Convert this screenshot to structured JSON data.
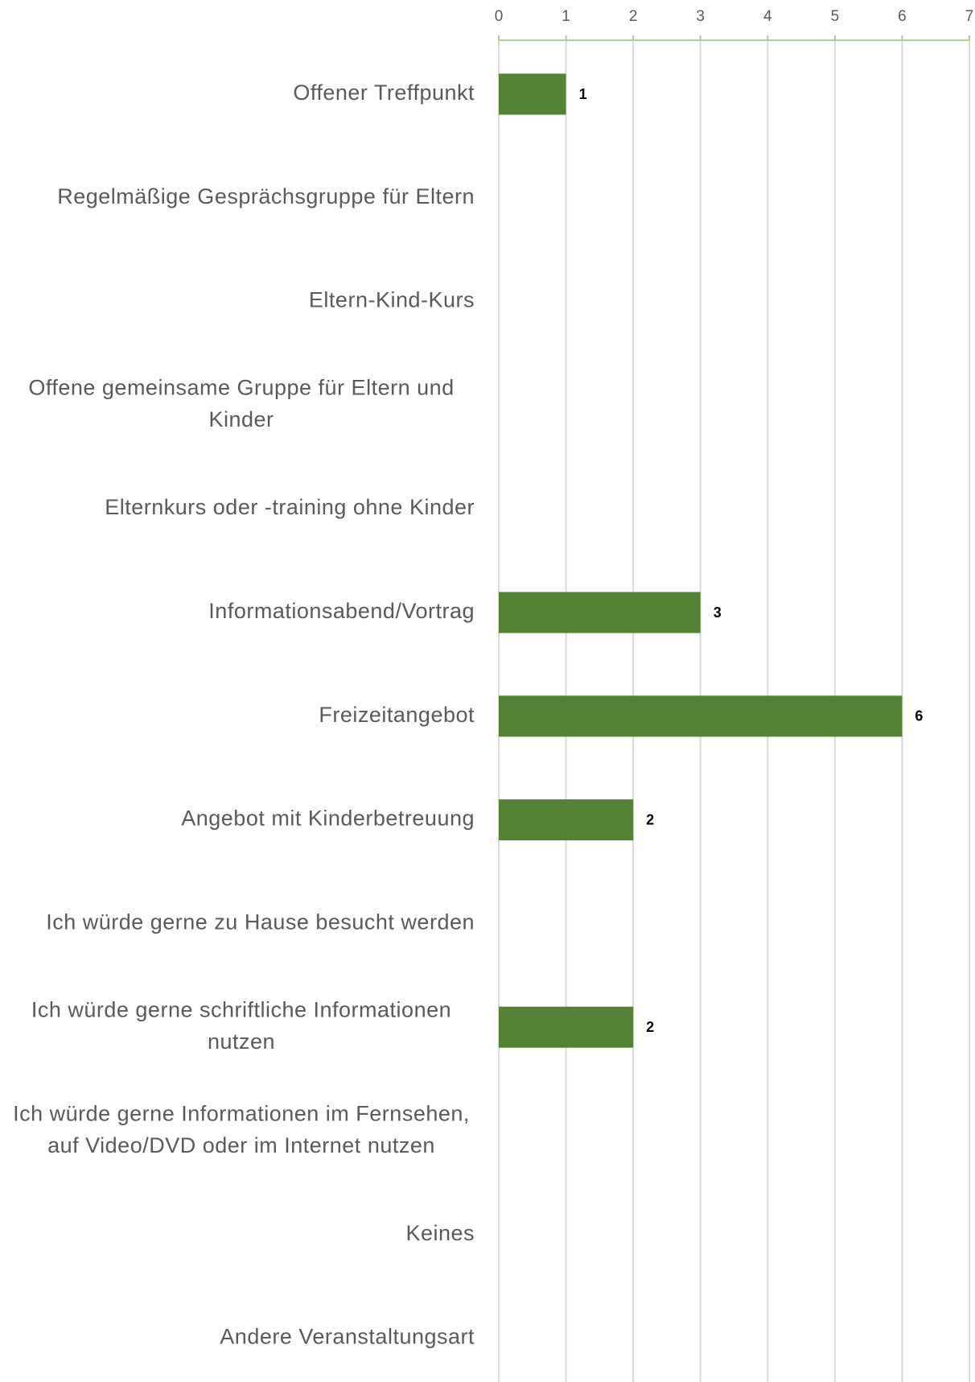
{
  "chart_data": {
    "type": "barh",
    "categories": [
      "Offener Treffpunkt",
      "Regelmäßige Gesprächsgruppe für Eltern",
      "Eltern-Kind-Kurs",
      "Offene gemeinsame Gruppe für Eltern und Kinder",
      "Elternkurs oder -training ohne Kinder",
      "Informationsabend/Vortrag",
      "Freizeitangebot",
      "Angebot mit Kinderbetreuung",
      "Ich würde gerne zu Hause besucht werden",
      "Ich würde gerne schriftliche Informationen nutzen",
      "Ich würde gerne Informationen im Fernsehen, auf Video/DVD oder im Internet nutzen",
      "Keines",
      "Andere Veranstaltungsart"
    ],
    "values": [
      1,
      null,
      null,
      null,
      null,
      3,
      6,
      2,
      null,
      2,
      null,
      null,
      null
    ],
    "color": "#548235",
    "xlim": [
      0,
      7
    ],
    "xticks": [
      0,
      1,
      2,
      3,
      4,
      5,
      6,
      7
    ],
    "grid": true
  }
}
